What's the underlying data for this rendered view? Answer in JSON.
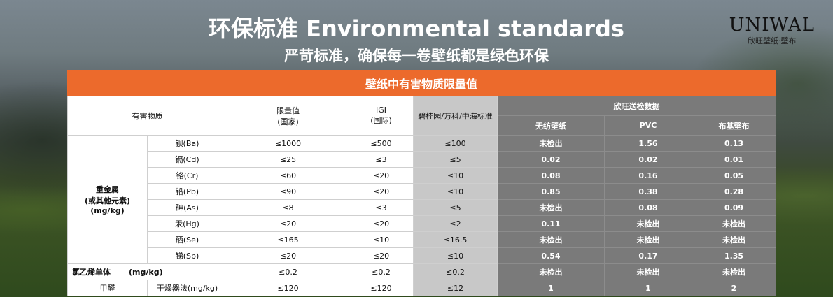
{
  "header": {
    "title": "环保标准 Environmental standards",
    "subtitle": "严苛标准，确保每一卷壁纸都是绿色环保"
  },
  "logo": {
    "brand": "UNIWAL",
    "tagline": "欣旺壁纸·壁布"
  },
  "table": {
    "title": "壁纸中有害物质限量值",
    "col_headers": {
      "substance": "有害物质",
      "national": "限量值\n(国家)",
      "igi": "IGI\n(国际)",
      "developer": "碧桂园/万科/中海标准",
      "tested_group": "欣旺送检数据",
      "nonwoven": "无纺壁纸",
      "pvc": "PVC",
      "fabric": "布基壁布"
    },
    "heavy_metal_group": "重金属\n(或其他元素)\n(mg/kg)",
    "heavy_metals": [
      {
        "name": "钡(Ba)",
        "national": "≤1000",
        "igi": "≤500",
        "developer": "≤100",
        "nonwoven": "未检出",
        "pvc": "1.56",
        "fabric": "0.13"
      },
      {
        "name": "镉(Cd)",
        "national": "≤25",
        "igi": "≤3",
        "developer": "≤5",
        "nonwoven": "0.02",
        "pvc": "0.02",
        "fabric": "0.01"
      },
      {
        "name": "铬(Cr)",
        "national": "≤60",
        "igi": "≤20",
        "developer": "≤10",
        "nonwoven": "0.08",
        "pvc": "0.16",
        "fabric": "0.05"
      },
      {
        "name": "铅(Pb)",
        "national": "≤90",
        "igi": "≤20",
        "developer": "≤10",
        "nonwoven": "0.85",
        "pvc": "0.38",
        "fabric": "0.28"
      },
      {
        "name": "砷(As)",
        "national": "≤8",
        "igi": "≤3",
        "developer": "≤5",
        "nonwoven": "未检出",
        "pvc": "0.08",
        "fabric": "0.09"
      },
      {
        "name": "汞(Hg)",
        "national": "≤20",
        "igi": "≤20",
        "developer": "≤2",
        "nonwoven": "0.11",
        "pvc": "未检出",
        "fabric": "未检出"
      },
      {
        "name": "硒(Se)",
        "national": "≤165",
        "igi": "≤10",
        "developer": "≤16.5",
        "nonwoven": "未检出",
        "pvc": "未检出",
        "fabric": "未检出"
      },
      {
        "name": "锑(Sb)",
        "national": "≤20",
        "igi": "≤20",
        "developer": "≤10",
        "nonwoven": "0.54",
        "pvc": "0.17",
        "fabric": "1.35"
      }
    ],
    "vinyl_chloride": {
      "name": "氯乙烯单体",
      "unit": "(mg/kg)",
      "national": "≤0.2",
      "igi": "≤0.2",
      "developer": "≤0.2",
      "nonwoven": "未检出",
      "pvc": "未检出",
      "fabric": "未检出"
    },
    "formaldehyde": {
      "name": "甲醛",
      "method": "干燥器法(mg/kg)",
      "national": "≤120",
      "igi": "≤120",
      "developer": "≤12",
      "nonwoven": "1",
      "pvc": "1",
      "fabric": "2"
    }
  }
}
